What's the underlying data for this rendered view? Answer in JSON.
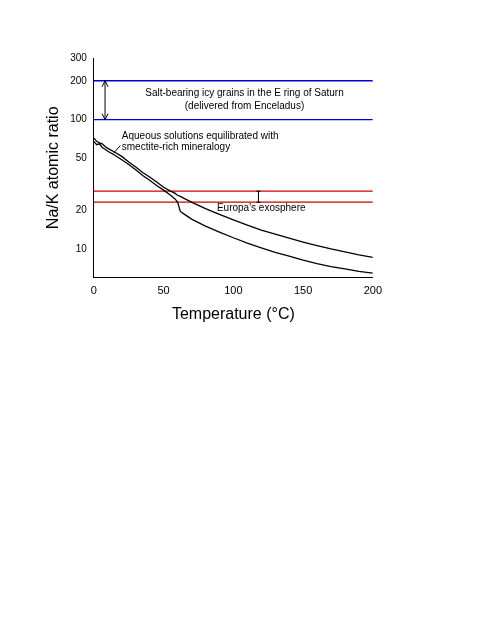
{
  "chart_data": {
    "type": "line",
    "x_label": "Temperature (°C)",
    "y_label": "Na/K atomic ratio",
    "xlim": [
      0,
      200
    ],
    "xticks": [
      0,
      50,
      100,
      150,
      200
    ],
    "ylim": [
      6,
      300
    ],
    "yticks": [
      10,
      20,
      50,
      100,
      200,
      300
    ],
    "log": "y",
    "grid": false,
    "series": [
      {
        "color": "#000000",
        "x": [
          0,
          2,
          4,
          6,
          8,
          10,
          15,
          20,
          25,
          30,
          35,
          40,
          45,
          50,
          55,
          58,
          60,
          62,
          65,
          70,
          80,
          90,
          100,
          110,
          120,
          130,
          140,
          150,
          160,
          170,
          180,
          190,
          200
        ],
        "values": [
          72,
          68,
          66,
          65,
          62,
          60,
          56,
          52,
          47,
          43,
          39,
          36,
          33,
          30,
          28,
          27,
          26,
          25.5,
          24.5,
          23,
          20.5,
          18.5,
          16.8,
          15.3,
          14,
          13,
          12.1,
          11.3,
          10.6,
          10,
          9.5,
          9,
          8.6
        ]
      },
      {
        "color": "#000000",
        "x": [
          0,
          2,
          4,
          6,
          8,
          10,
          15,
          20,
          25,
          30,
          35,
          40,
          45,
          50,
          55,
          58,
          60,
          62,
          65,
          70,
          80,
          90,
          100,
          110,
          120,
          130,
          140,
          150,
          160,
          170,
          180,
          190,
          200
        ],
        "values": [
          68,
          64,
          65,
          61,
          59,
          57,
          53,
          49,
          45,
          41,
          37,
          34,
          31,
          28.5,
          26,
          24.5,
          23,
          19.5,
          18.5,
          17,
          15,
          13.5,
          12.2,
          11.1,
          10.2,
          9.4,
          8.8,
          8.2,
          7.7,
          7.3,
          7,
          6.7,
          6.5
        ]
      },
      {
        "color": "#0000cc",
        "x": [
          0,
          200
        ],
        "values": [
          200,
          200
        ]
      },
      {
        "color": "#0000cc",
        "x": [
          0,
          200
        ],
        "values": [
          100,
          100
        ]
      },
      {
        "color": "#cc0000",
        "x": [
          0,
          200
        ],
        "values": [
          28,
          28
        ]
      },
      {
        "color": "#cc0000",
        "x": [
          0,
          200
        ],
        "values": [
          23,
          23
        ]
      }
    ],
    "annotations": [
      "Salt-bearing icy grains in the E ring of Saturn",
      "(delivered from Enceladus)",
      "Aqueous solutions equilibrated with",
      "smectite-rich mineralogy",
      "Europa's exosphere"
    ]
  }
}
